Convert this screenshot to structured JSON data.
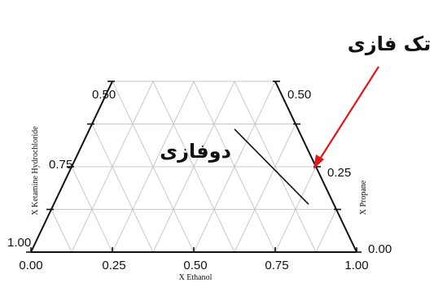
{
  "chart_data": {
    "type": "ternary",
    "visible_window": "truncated top at X Ethanol-axis fraction 0.50",
    "axes": {
      "bottom": {
        "label": "X Ethanol",
        "ticks": [
          "0.00",
          "0.25",
          "0.50",
          "0.75",
          "1.00"
        ],
        "values": [
          0,
          0.25,
          0.5,
          0.75,
          1.0
        ]
      },
      "left": {
        "label": "X Ketamine Hydrochloride",
        "ticks": [
          "0.50",
          "0.75",
          "1.00"
        ],
        "values": [
          0.5,
          0.75,
          1.0
        ]
      },
      "right": {
        "label": "X Propane",
        "ticks": [
          "0.50",
          "0.25",
          "0.00"
        ],
        "values": [
          0.5,
          0.25,
          0.0
        ]
      }
    },
    "grid": true,
    "grid_step": 0.125,
    "phase_boundary": {
      "description": "line near right edge",
      "points": [
        {
          "x_ethanol": 0.64,
          "x_propane": 0.36
        },
        {
          "x_ethanol": 0.86,
          "x_propane": 0.14
        }
      ]
    },
    "regions": [
      {
        "name": "دوفازی"
      },
      {
        "name": "تک فازی"
      }
    ],
    "colors": {
      "frame": "#111111",
      "grid": "#c8c8c8",
      "arrow": "#e3151b"
    }
  }
}
